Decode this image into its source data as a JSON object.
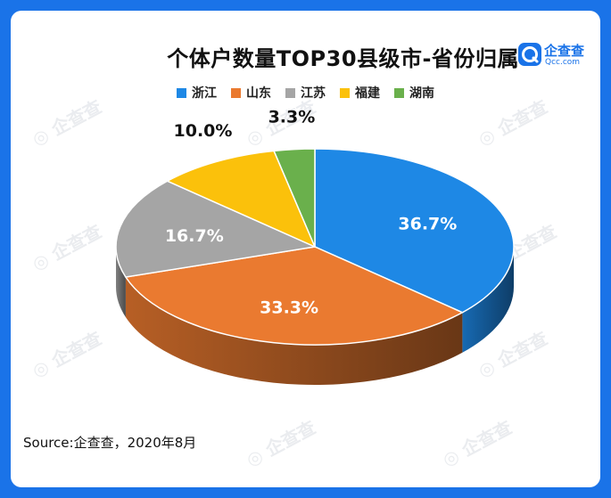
{
  "chart_data": {
    "type": "pie",
    "title": "个体户数量TOP30县级市-省份归属",
    "categories": [
      "浙江",
      "山东",
      "江苏",
      "福建",
      "湖南"
    ],
    "values": [
      36.7,
      33.3,
      16.7,
      10.0,
      3.3
    ],
    "labels": [
      "36.7%",
      "33.3%",
      "16.7%",
      "10.0%",
      "3.3%"
    ],
    "colors": [
      "#1e88e5",
      "#ea7a30",
      "#a5a5a5",
      "#fbc10b",
      "#6ab04c"
    ],
    "legend_position": "top-center",
    "three_d": true
  },
  "source": "Source:企查查，2020年8月",
  "logo": {
    "icon": "qcc-logo-icon",
    "name": "企查查",
    "domain": "Qcc.com"
  },
  "watermark": "企查查"
}
